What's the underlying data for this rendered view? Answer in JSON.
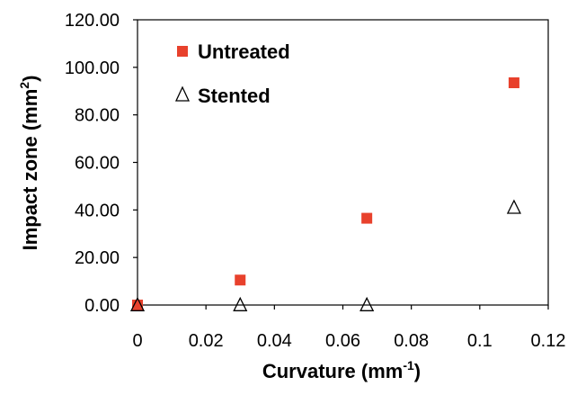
{
  "chart_data": {
    "type": "scatter",
    "xlabel": "Curvature (mm",
    "xlabel_sup": "-1",
    "xlabel_end": ")",
    "ylabel": "Impact zone (mm",
    "ylabel_sup": "2",
    "ylabel_end": ")",
    "xlim": [
      0,
      0.12
    ],
    "ylim": [
      0,
      120
    ],
    "x_ticks": [
      0,
      0.02,
      0.04,
      0.06,
      0.08,
      0.1,
      0.12
    ],
    "x_tick_labels": [
      "0",
      "0.02",
      "0.04",
      "0.06",
      "0.08",
      "0.1",
      "0.12"
    ],
    "y_ticks": [
      0,
      20,
      40,
      60,
      80,
      100,
      120
    ],
    "y_tick_labels": [
      "0.00",
      "20.00",
      "40.00",
      "60.00",
      "80.00",
      "100.00",
      "120.00"
    ],
    "legend_position": "top-left",
    "series": [
      {
        "name": "Untreated",
        "marker": "square",
        "color": "#e8412c",
        "points": [
          [
            0,
            0
          ],
          [
            0.03,
            10.5
          ],
          [
            0.067,
            36.5
          ],
          [
            0.11,
            93.5
          ]
        ]
      },
      {
        "name": "Stented",
        "marker": "triangle-open",
        "color": "#000000",
        "points": [
          [
            0,
            0
          ],
          [
            0.03,
            0
          ],
          [
            0.067,
            0
          ],
          [
            0.11,
            41
          ]
        ]
      }
    ]
  }
}
